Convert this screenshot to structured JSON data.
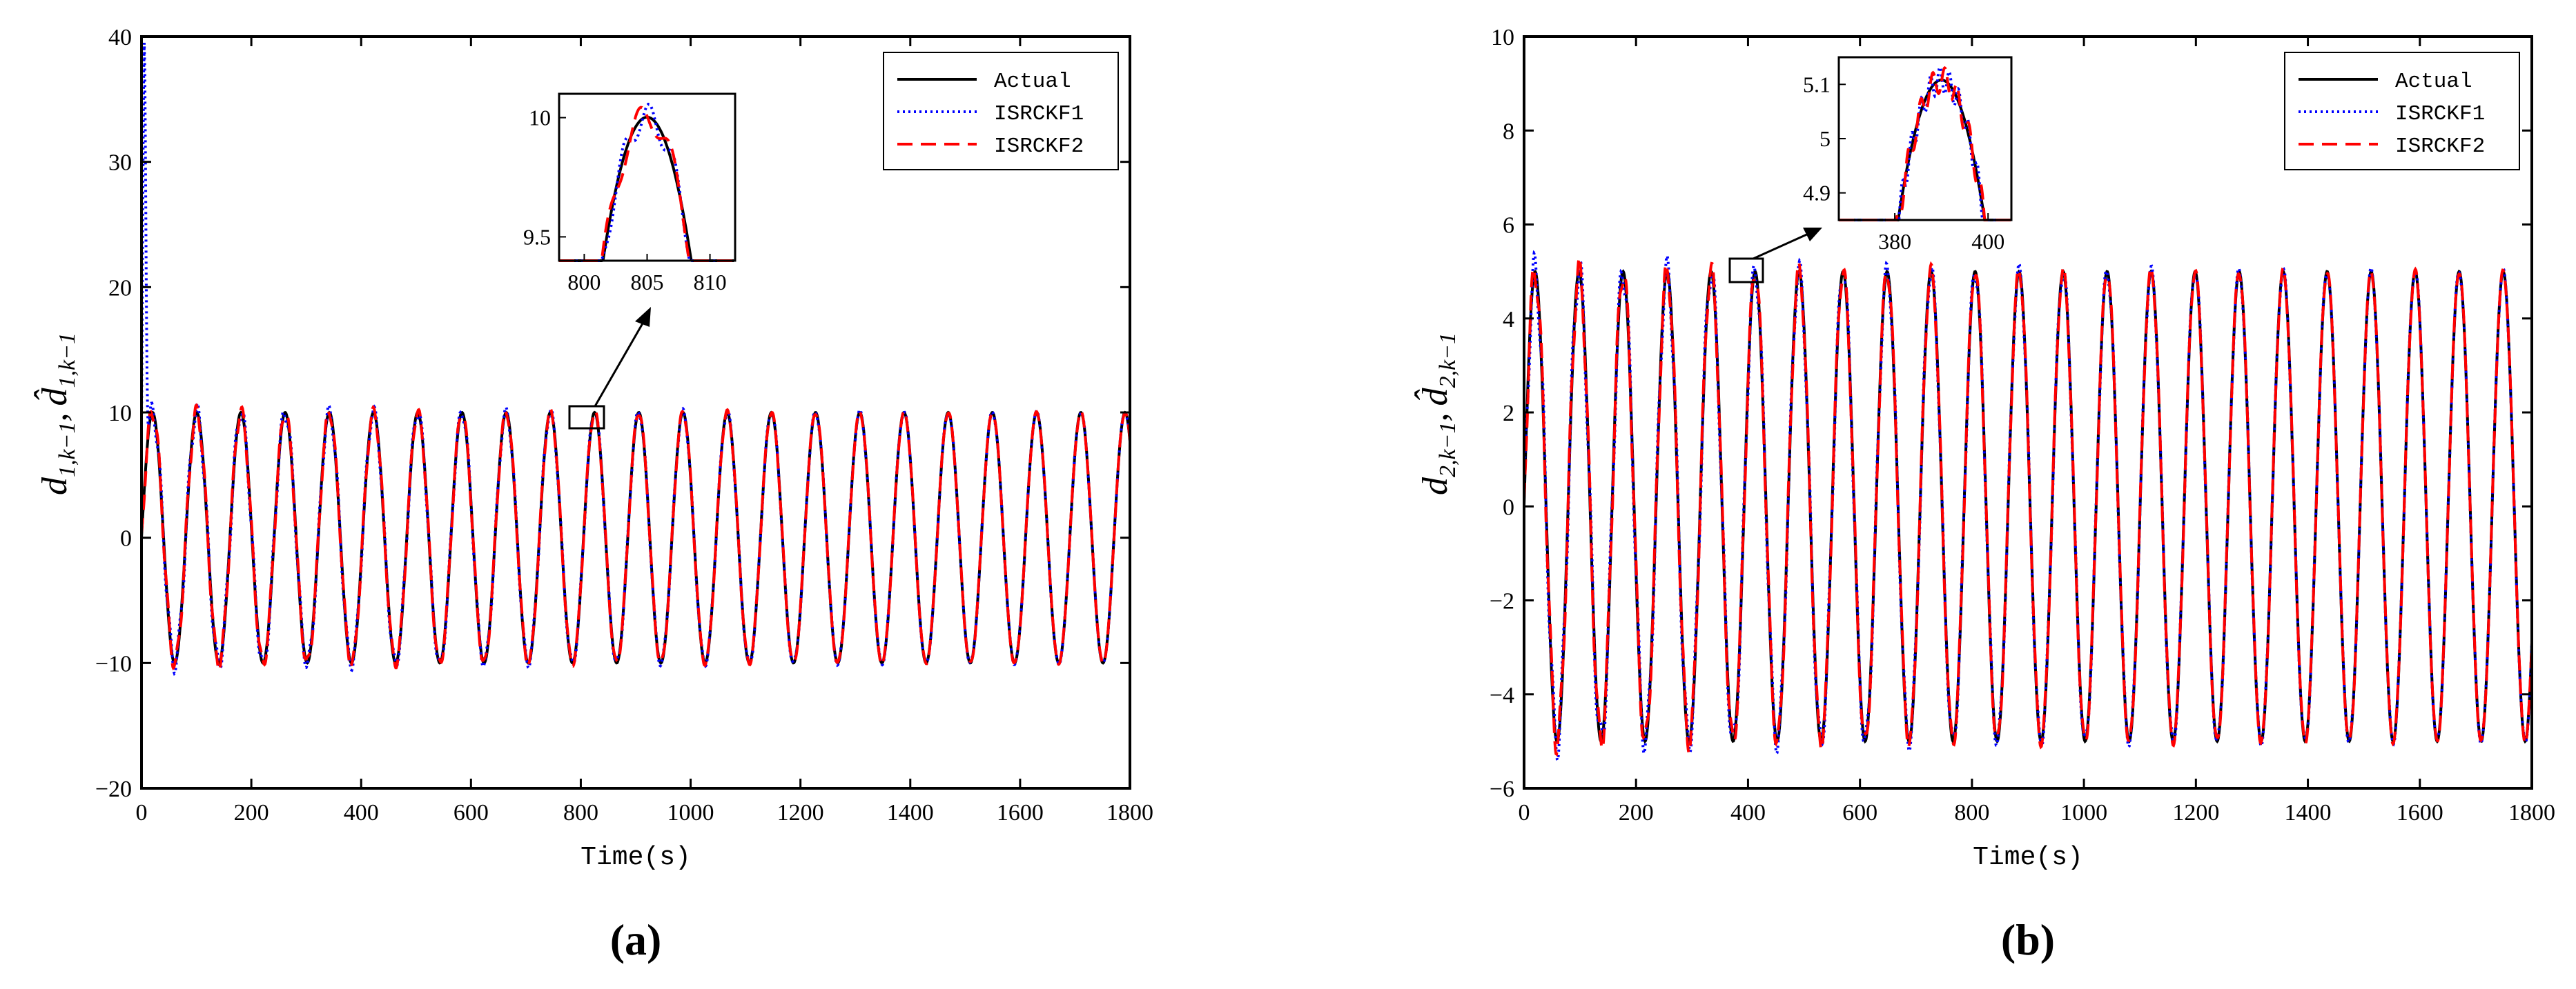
{
  "chart_data": [
    {
      "type": "line",
      "panel_label": "(a)",
      "xlabel": "Time(s)",
      "ylabel": "d",
      "ylabel_sub": "1,k−1",
      "ylabel_sep": ",",
      "ylabel_hat": "d̂",
      "xlim": [
        0,
        1800
      ],
      "ylim": [
        -20,
        40
      ],
      "xticks": [
        "0",
        "200",
        "400",
        "600",
        "800",
        "1000",
        "1200",
        "1400",
        "1600",
        "1800"
      ],
      "yticks": [
        "−20",
        "−10",
        "0",
        "10",
        "20",
        "30",
        "40"
      ],
      "grid": false,
      "legend_position": "top-right",
      "series": [
        {
          "name": "Actual",
          "color": "#000000",
          "style": "solid",
          "amplitude": 10,
          "period": 80.5,
          "offset": 0
        },
        {
          "name": "ISRCKF1",
          "color": "#0000ff",
          "style": "dotted",
          "amplitude": 10,
          "period": 80.5,
          "offset": 0,
          "initial_peak": 39.5
        },
        {
          "name": "ISRCKF2",
          "color": "#ff0000",
          "style": "dashed",
          "amplitude": 10,
          "period": 80.5,
          "offset": 0
        }
      ],
      "inset": {
        "xlim": [
          798,
          812
        ],
        "ylim": [
          9.4,
          10.1
        ],
        "xticks": [
          "800",
          "805",
          "810"
        ],
        "yticks": [
          "9.5",
          "10"
        ],
        "zoom_box_x": [
          790,
          825
        ],
        "zoom_box_y": [
          8.8,
          11.0
        ]
      }
    },
    {
      "type": "line",
      "panel_label": "(b)",
      "xlabel": "Time(s)",
      "ylabel": "d",
      "ylabel_sub": "2,k−1",
      "ylabel_sep": ",",
      "ylabel_hat": "d̂",
      "xlim": [
        0,
        1800
      ],
      "ylim": [
        -6,
        10
      ],
      "xticks": [
        "0",
        "200",
        "400",
        "600",
        "800",
        "1000",
        "1200",
        "1400",
        "1600",
        "1800"
      ],
      "yticks": [
        "−6",
        "−4",
        "−2",
        "0",
        "2",
        "4",
        "6",
        "8",
        "10"
      ],
      "grid": false,
      "legend_position": "top-right",
      "series": [
        {
          "name": "Actual",
          "color": "#000000",
          "style": "solid",
          "amplitude": 5,
          "period": 78.6,
          "offset": 0
        },
        {
          "name": "ISRCKF1",
          "color": "#0000ff",
          "style": "dotted",
          "amplitude": 5,
          "period": 78.6,
          "offset": 0
        },
        {
          "name": "ISRCKF2",
          "color": "#ff0000",
          "style": "dashed",
          "amplitude": 5,
          "period": 78.6,
          "offset": 0
        }
      ],
      "inset": {
        "xlim": [
          368,
          405
        ],
        "ylim": [
          4.85,
          5.15
        ],
        "xticks": [
          "380",
          "400"
        ],
        "yticks": [
          "4.9",
          "5",
          "5.1"
        ],
        "zoom_box_x": [
          370,
          410
        ],
        "zoom_box_y": [
          4.6,
          5.4
        ]
      }
    }
  ]
}
